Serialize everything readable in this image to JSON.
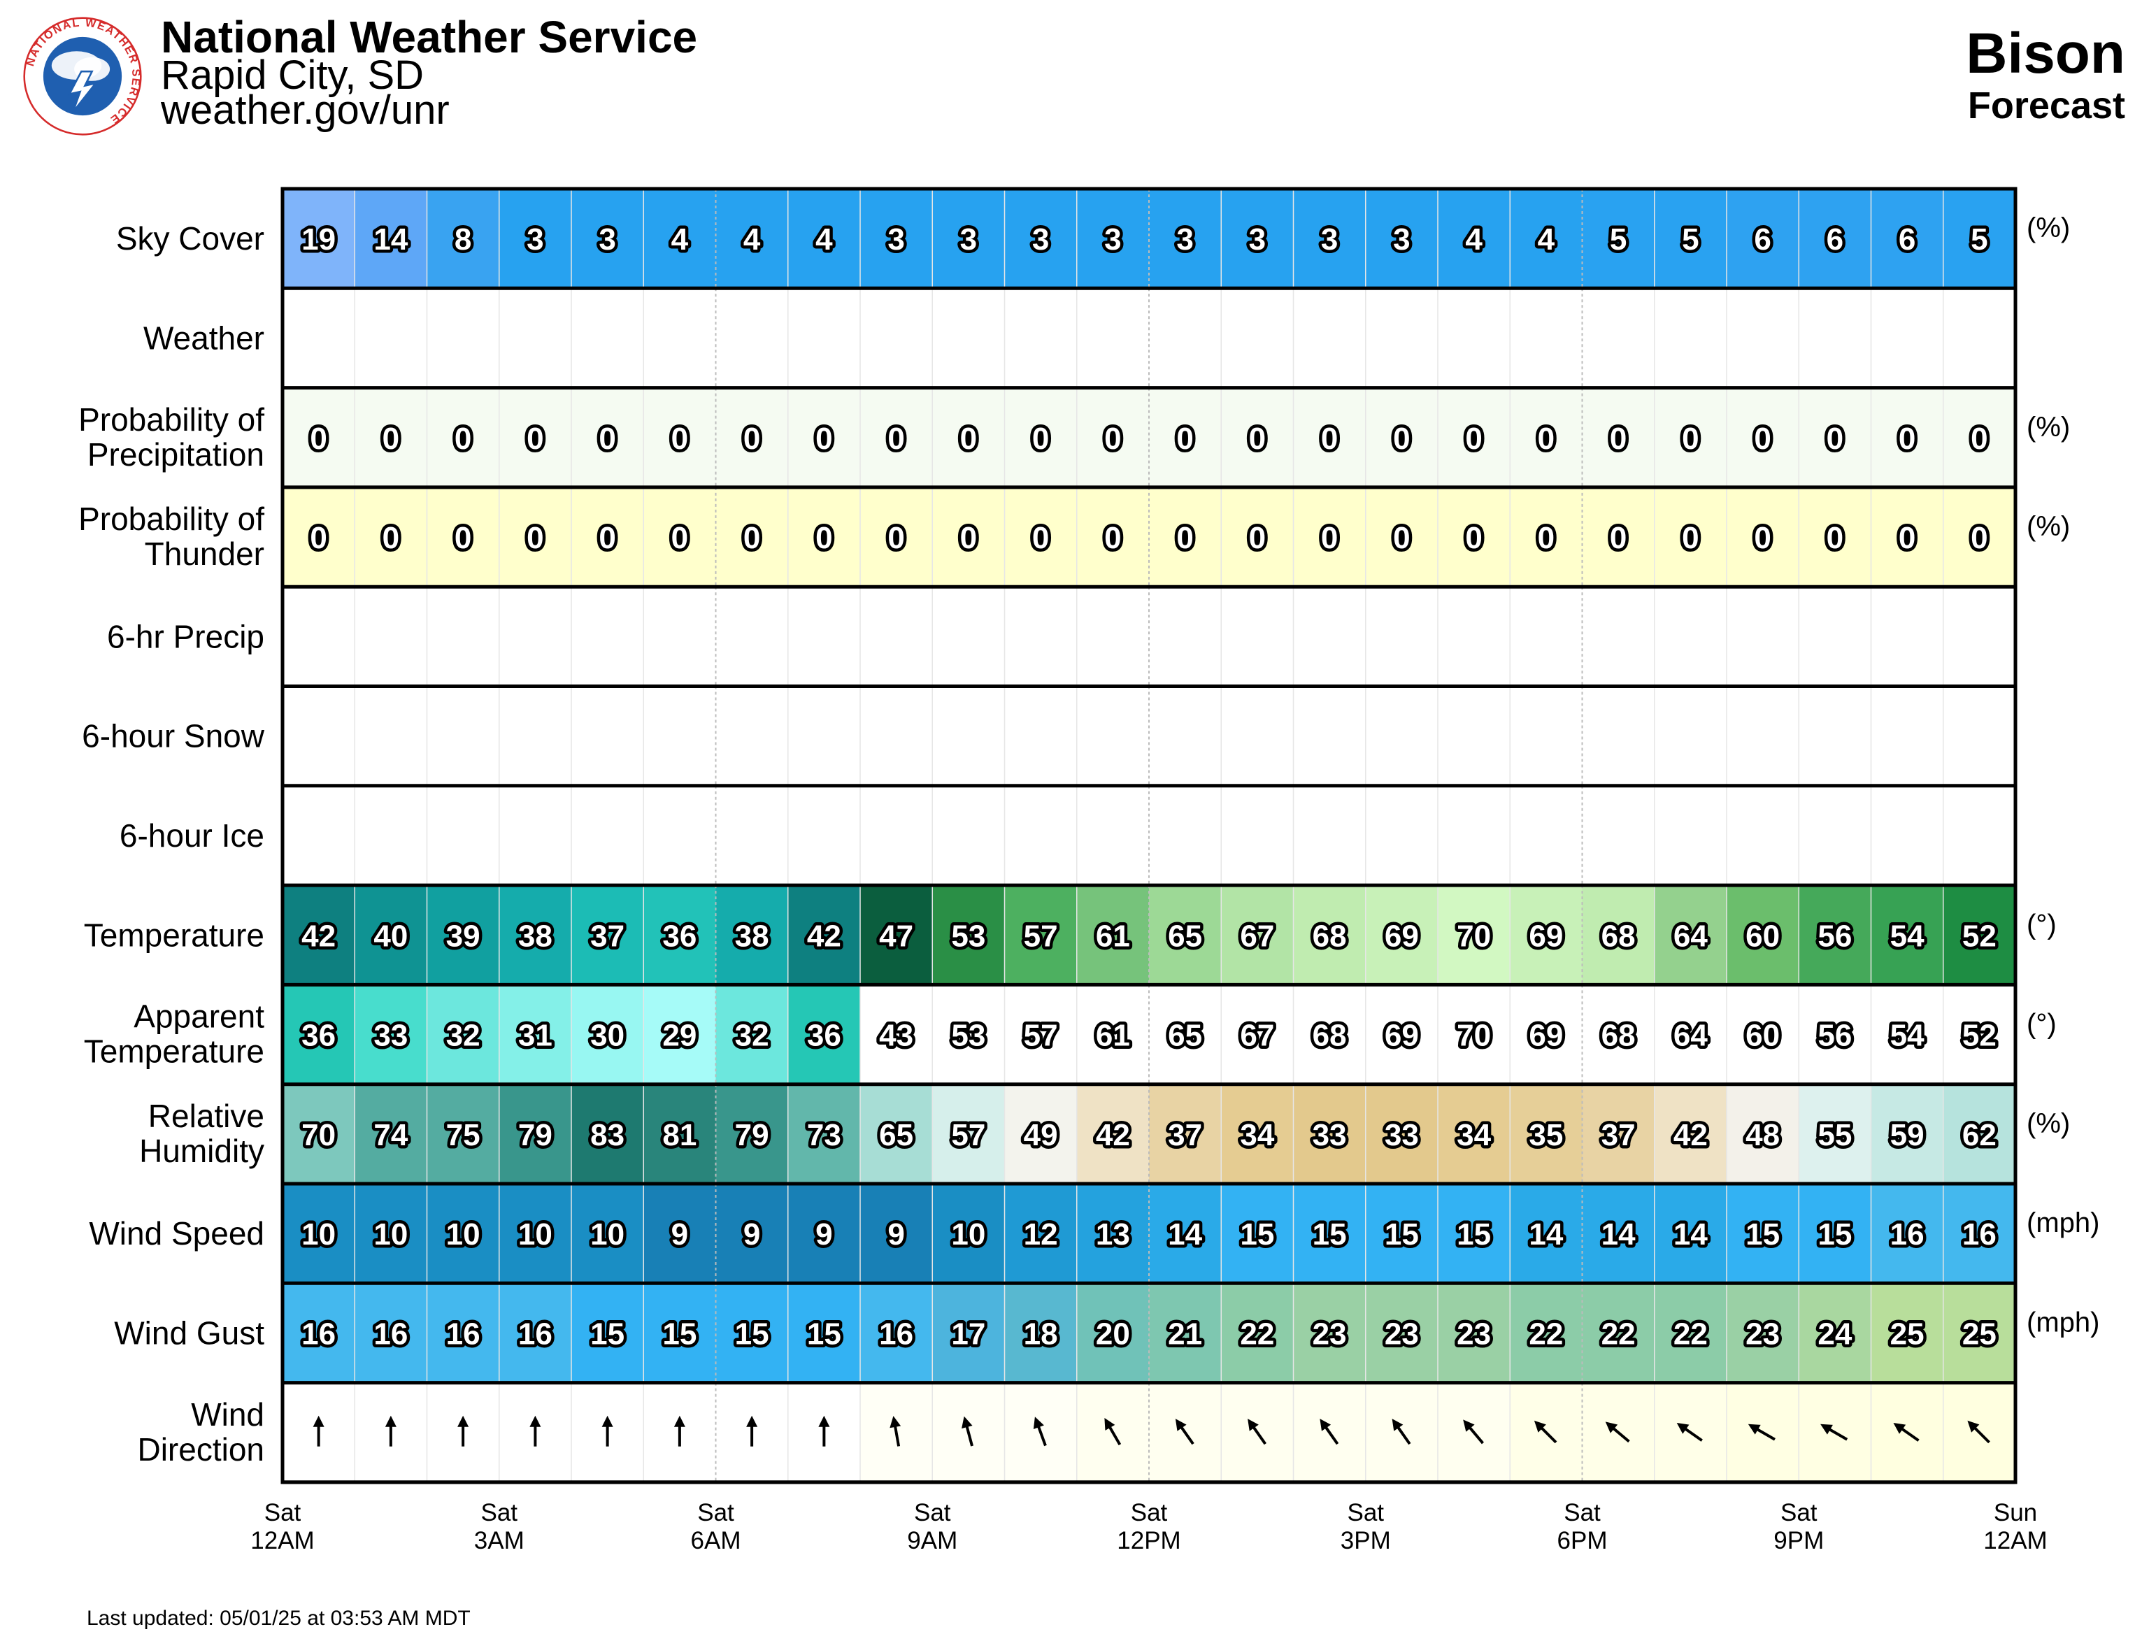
{
  "header": {
    "org_name": "National Weather Service",
    "office": "Rapid City, SD",
    "site": "weather.gov/unr",
    "location": "Bison",
    "subtitle": "Forecast",
    "logo_text": "NATIONAL WEATHER SERVICE"
  },
  "footer": {
    "last_updated": "Last updated: 05/01/25 at 03:53 AM MDT"
  },
  "colors": {
    "frame": "#000000",
    "weather_bg": "#ffffff",
    "pop_bg": "#f5fbf2",
    "thunder_bg": "#ffffcc",
    "wind_dir_low": "#fffff0",
    "wind_dir_high": "#ffffde"
  },
  "chart_data": {
    "type": "table",
    "columns": 24,
    "x_tick_labels": [
      [
        "Sat",
        "12AM"
      ],
      [
        "Sat",
        "3AM"
      ],
      [
        "Sat",
        "6AM"
      ],
      [
        "Sat",
        "9AM"
      ],
      [
        "Sat",
        "12PM"
      ],
      [
        "Sat",
        "3PM"
      ],
      [
        "Sat",
        "6PM"
      ],
      [
        "Sat",
        "9PM"
      ],
      [
        "Sun",
        "12AM"
      ]
    ],
    "rows": [
      {
        "label": [
          "Sky Cover"
        ],
        "unit": "(%)",
        "values": [
          19,
          14,
          8,
          3,
          3,
          4,
          4,
          4,
          3,
          3,
          3,
          3,
          3,
          3,
          3,
          3,
          4,
          4,
          5,
          5,
          6,
          6,
          6,
          5
        ],
        "colors": [
          "#7fb4fa",
          "#5ea7f7",
          "#39a3f1",
          "#27a2f0",
          "#27a2f0",
          "#27a2f0",
          "#27a2f0",
          "#27a2f0",
          "#27a2f0",
          "#27a2f0",
          "#27a2f0",
          "#27a2f0",
          "#27a2f0",
          "#27a2f0",
          "#27a2f0",
          "#27a2f0",
          "#27a2f0",
          "#27a2f0",
          "#29a2f1",
          "#29a2f1",
          "#2ea2f1",
          "#2ea2f1",
          "#2ea2f1",
          "#29a2f1"
        ]
      },
      {
        "label": [
          "Weather"
        ],
        "unit": "",
        "values": [],
        "colors": []
      },
      {
        "label": [
          "Probability of",
          "Precipitation"
        ],
        "unit": "(%)",
        "values": [
          0,
          0,
          0,
          0,
          0,
          0,
          0,
          0,
          0,
          0,
          0,
          0,
          0,
          0,
          0,
          0,
          0,
          0,
          0,
          0,
          0,
          0,
          0,
          0
        ],
        "colors": []
      },
      {
        "label": [
          "Probability of",
          "Thunder"
        ],
        "unit": "(%)",
        "values": [
          0,
          0,
          0,
          0,
          0,
          0,
          0,
          0,
          0,
          0,
          0,
          0,
          0,
          0,
          0,
          0,
          0,
          0,
          0,
          0,
          0,
          0,
          0,
          0
        ],
        "colors": []
      },
      {
        "label": [
          "6-hr Precip"
        ],
        "unit": "",
        "values": [],
        "colors": []
      },
      {
        "label": [
          "6-hour Snow"
        ],
        "unit": "",
        "values": [],
        "colors": []
      },
      {
        "label": [
          "6-hour Ice"
        ],
        "unit": "",
        "values": [],
        "colors": []
      },
      {
        "label": [
          "Temperature"
        ],
        "unit": "(°)",
        "values": [
          42,
          40,
          39,
          38,
          37,
          36,
          38,
          42,
          47,
          53,
          57,
          61,
          65,
          67,
          68,
          69,
          70,
          69,
          68,
          64,
          60,
          56,
          54,
          52
        ],
        "colors": [
          "#0e8080",
          "#0f9393",
          "#11a0a0",
          "#15acac",
          "#1cbcb5",
          "#22c2b8",
          "#15acac",
          "#0e8080",
          "#0b5e3e",
          "#2a8f46",
          "#4db060",
          "#76c37b",
          "#9dd996",
          "#b2e4a6",
          "#c0ecb0",
          "#c8f1b8",
          "#d2f8c2",
          "#c8f1b8",
          "#c0ecb0",
          "#94d18e",
          "#6bbe6c",
          "#45a95a",
          "#37a254",
          "#1e8d43"
        ]
      },
      {
        "label": [
          "Apparent",
          "Temperature"
        ],
        "unit": "(°)",
        "values": [
          36,
          33,
          32,
          31,
          30,
          29,
          32,
          36,
          43,
          53,
          57,
          61,
          65,
          67,
          68,
          69,
          70,
          69,
          68,
          64,
          60,
          56,
          54,
          52
        ],
        "colors": [
          "#25c7b5",
          "#48ddcd",
          "#6ce7dd",
          "#84f0e8",
          "#98f7f2",
          "#a6fbf8",
          "#6ce7dd",
          "#25c7b5",
          "#ffffff",
          "#ffffff",
          "#ffffff",
          "#ffffff",
          "#ffffff",
          "#ffffff",
          "#ffffff",
          "#ffffff",
          "#ffffff",
          "#ffffff",
          "#ffffff",
          "#ffffff",
          "#ffffff",
          "#ffffff",
          "#ffffff",
          "#ffffff"
        ]
      },
      {
        "label": [
          "Relative",
          "Humidity"
        ],
        "unit": "(%)",
        "values": [
          70,
          74,
          75,
          79,
          83,
          81,
          79,
          73,
          65,
          57,
          49,
          42,
          37,
          34,
          33,
          33,
          34,
          35,
          37,
          42,
          48,
          55,
          59,
          62
        ],
        "colors": [
          "#7dc8bd",
          "#54aca1",
          "#54aca1",
          "#39968c",
          "#1e7a70",
          "#29857b",
          "#39968c",
          "#62b7ab",
          "#a7ddd5",
          "#d6efeb",
          "#f3f3ed",
          "#efe2c5",
          "#e8d3a4",
          "#e5cc92",
          "#e3c98d",
          "#e3c98d",
          "#e5cc92",
          "#e6cf98",
          "#e8d3a4",
          "#efe2c5",
          "#f3f1ea",
          "#ddf1ee",
          "#c6e9e4",
          "#b6e3dd"
        ]
      },
      {
        "label": [
          "Wind Speed"
        ],
        "unit": "(mph)",
        "values": [
          10,
          10,
          10,
          10,
          10,
          9,
          9,
          9,
          9,
          10,
          12,
          13,
          14,
          15,
          15,
          15,
          15,
          14,
          14,
          14,
          15,
          15,
          16,
          16
        ],
        "colors": [
          "#1a8ec4",
          "#1a8ec4",
          "#1a8ec4",
          "#1a8ec4",
          "#1a8ec4",
          "#1880b6",
          "#1880b6",
          "#1880b6",
          "#1880b6",
          "#1a8ec4",
          "#1f9ad4",
          "#24a2de",
          "#2aaae8",
          "#33b2f3",
          "#33b2f3",
          "#33b2f3",
          "#33b2f3",
          "#2aaae8",
          "#2aaae8",
          "#2aaae8",
          "#33b2f3",
          "#33b2f3",
          "#44b8ee",
          "#44b8ee"
        ]
      },
      {
        "label": [
          "Wind Gust"
        ],
        "unit": "(mph)",
        "values": [
          16,
          16,
          16,
          16,
          15,
          15,
          15,
          15,
          16,
          17,
          18,
          20,
          21,
          22,
          23,
          23,
          23,
          22,
          22,
          22,
          23,
          24,
          25,
          25
        ],
        "colors": [
          "#44b8ee",
          "#44b8ee",
          "#44b8ee",
          "#44b8ee",
          "#33b2f3",
          "#33b2f3",
          "#33b2f3",
          "#33b2f3",
          "#44b8ee",
          "#4db4dd",
          "#58b8d0",
          "#70c2b8",
          "#7ec7b0",
          "#8ccca8",
          "#9ad0a5",
          "#9ad0a5",
          "#9ad0a5",
          "#8ccca8",
          "#8ccca8",
          "#8ccca8",
          "#9ad0a5",
          "#a9d7a0",
          "#b8de9b",
          "#b8de9b"
        ]
      },
      {
        "label": [
          "Wind",
          "Direction"
        ],
        "unit": "",
        "directions_deg": [
          180,
          180,
          180,
          180,
          180,
          180,
          180,
          180,
          170,
          165,
          160,
          150,
          145,
          145,
          145,
          145,
          140,
          135,
          130,
          125,
          120,
          120,
          125,
          135
        ],
        "colors": [
          "#ffffff",
          "#ffffff",
          "#ffffff",
          "#ffffff",
          "#ffffff",
          "#ffffff",
          "#ffffff",
          "#ffffff",
          "#fffff6",
          "#fffff6",
          "#fffff6",
          "#fffff0",
          "#fffff0",
          "#fffff0",
          "#fffff0",
          "#fffff0",
          "#fffff0",
          "#ffffe8",
          "#ffffe8",
          "#ffffe8",
          "#ffffe3",
          "#ffffe3",
          "#ffffe0",
          "#ffffe0"
        ]
      }
    ]
  }
}
